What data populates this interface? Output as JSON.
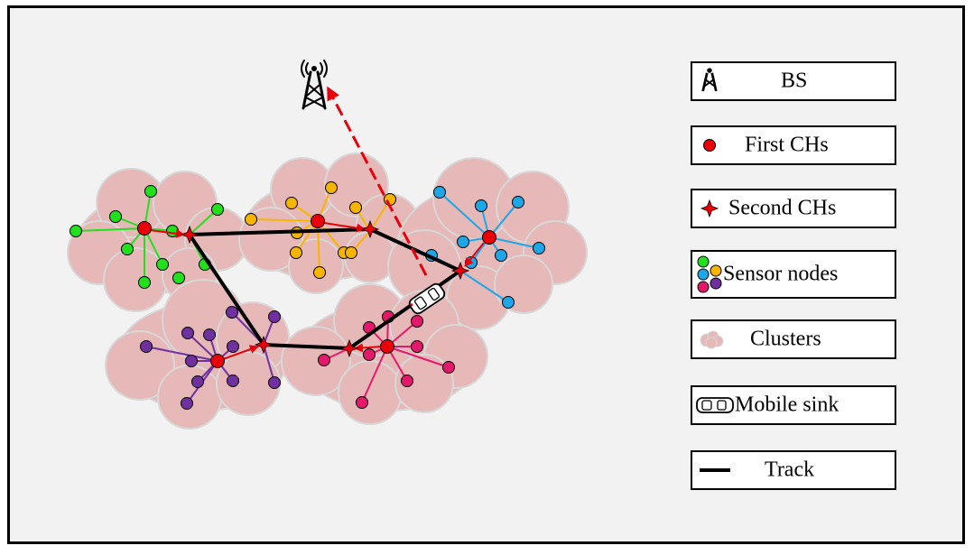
{
  "colors": {
    "cluster": "#e6b8b8",
    "cluster_edge": "#d8d8d8",
    "first_ch": "#e8000b",
    "second_ch": "#e8000b",
    "track": "#000000",
    "arrow": "#e8000b",
    "green": "#22e01c",
    "yellow": "#f7b500",
    "blue": "#1ea7e6",
    "purple": "#7030a0",
    "pink": "#e5196b"
  },
  "legend": {
    "bs": "BS",
    "first_chs": "First CHs",
    "second_chs": "Second CHs",
    "sensor_nodes": "Sensor nodes",
    "clusters": "Clusters",
    "mobile_sink": "Mobile sink",
    "track": "Track"
  },
  "icons": [
    "tower-icon",
    "dot-icon",
    "star-icon",
    "sensor-dots-icon",
    "cloud-icon",
    "car-icon",
    "line-icon"
  ]
}
